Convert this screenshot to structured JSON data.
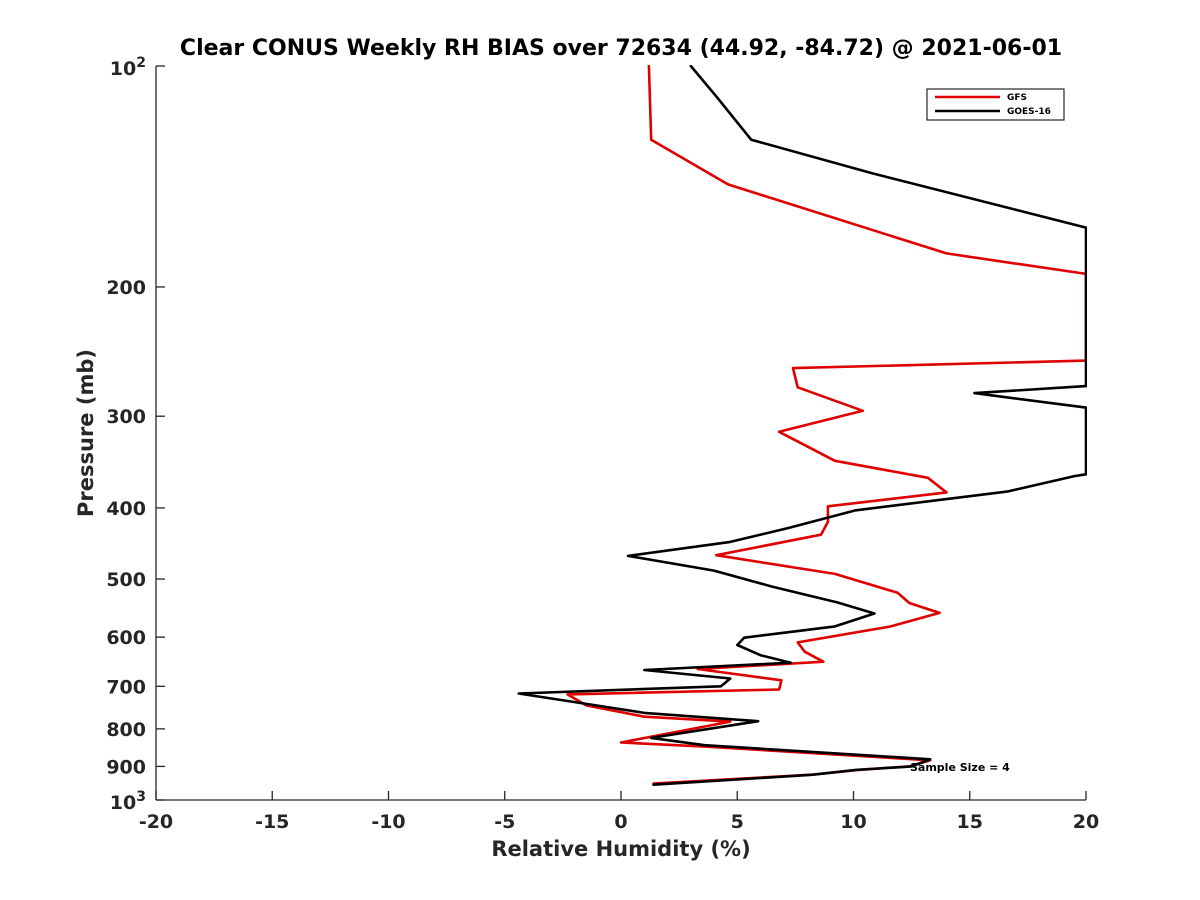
{
  "chart_data": {
    "type": "line",
    "title": "Clear CONUS Weekly RH BIAS over 72634 (44.92, -84.72) @ 2021-06-01",
    "xlabel": "Relative Humidity (%)",
    "ylabel": "Pressure (mb)",
    "xlim": [
      -20,
      20
    ],
    "ylim": [
      100,
      1000
    ],
    "yscale": "log",
    "y_reversed": true,
    "grid": false,
    "legend_position": "top-right",
    "x_ticks": [
      -20,
      -15,
      -10,
      -5,
      0,
      5,
      10,
      15,
      20
    ],
    "x_tick_labels": [
      "-20",
      "-15",
      "-10",
      "-5",
      "0",
      "5",
      "10",
      "15",
      "20"
    ],
    "y_ticks": [
      200,
      300,
      400,
      500,
      600,
      700,
      800,
      900
    ],
    "y_tick_labels": [
      "200",
      "300",
      "400",
      "500",
      "600",
      "700",
      "800",
      "900"
    ],
    "y_decade_ticks": [
      {
        "value": 100,
        "base": "10",
        "exp": "2"
      },
      {
        "value": 1000,
        "base": "10",
        "exp": "3"
      }
    ],
    "annotation": "Sample Size = 4",
    "series": [
      {
        "name": "GFS",
        "color": "#e00000",
        "points": [
          [
            1.2,
            100
          ],
          [
            1.3,
            126
          ],
          [
            4.6,
            145
          ],
          [
            14,
            180
          ],
          [
            20,
            192
          ],
          [
            20,
            192
          ],
          [
            20,
            252
          ],
          [
            7.4,
            258
          ],
          [
            7.6,
            274
          ],
          [
            10.4,
            295
          ],
          [
            6.8,
            315
          ],
          [
            9.2,
            345
          ],
          [
            13.2,
            364
          ],
          [
            14.0,
            381
          ],
          [
            8.9,
            398
          ],
          [
            8.9,
            418
          ],
          [
            8.6,
            435
          ],
          [
            4.1,
            464
          ],
          [
            9.2,
            492
          ],
          [
            11.9,
            522
          ],
          [
            12.4,
            539
          ],
          [
            13.7,
            556
          ],
          [
            11.6,
            580
          ],
          [
            7.6,
            610
          ],
          [
            7.9,
            628
          ],
          [
            8.7,
            648
          ],
          [
            3.3,
            663
          ],
          [
            6.9,
            687
          ],
          [
            6.8,
            707
          ],
          [
            -2.3,
            718
          ],
          [
            -1.5,
            743
          ],
          [
            1.0,
            770
          ],
          [
            4.7,
            782
          ],
          [
            0.0,
            835
          ],
          [
            3.7,
            846
          ],
          [
            13.3,
            883
          ],
          [
            12.4,
            900
          ],
          [
            10.2,
            910
          ],
          [
            8.3,
            923
          ],
          [
            1.4,
            950
          ]
        ]
      },
      {
        "name": "GOES-16",
        "color": "#000000",
        "points": [
          [
            3.0,
            100
          ],
          [
            4.1,
            110
          ],
          [
            5.6,
            126
          ],
          [
            10.8,
            140
          ],
          [
            20,
            166
          ],
          [
            20,
            273
          ],
          [
            15.2,
            279
          ],
          [
            20,
            292
          ],
          [
            20,
            360
          ],
          [
            19.5,
            362
          ],
          [
            16.6,
            380
          ],
          [
            10.1,
            403
          ],
          [
            7.2,
            426
          ],
          [
            4.7,
            445
          ],
          [
            0.3,
            465
          ],
          [
            4.0,
            487
          ],
          [
            6.5,
            512
          ],
          [
            9.3,
            538
          ],
          [
            10.9,
            557
          ],
          [
            9.2,
            580
          ],
          [
            5.3,
            601
          ],
          [
            5.0,
            615
          ],
          [
            6.0,
            635
          ],
          [
            7.3,
            650
          ],
          [
            1.0,
            665
          ],
          [
            4.7,
            683
          ],
          [
            4.3,
            700
          ],
          [
            -4.4,
            716
          ],
          [
            -2.4,
            732
          ],
          [
            1.0,
            761
          ],
          [
            5.9,
            781
          ],
          [
            1.3,
            823
          ],
          [
            3.6,
            842
          ],
          [
            13.3,
            880
          ],
          [
            12.5,
            900
          ],
          [
            10.1,
            910
          ],
          [
            8.2,
            924
          ],
          [
            1.4,
            953
          ]
        ]
      }
    ]
  }
}
